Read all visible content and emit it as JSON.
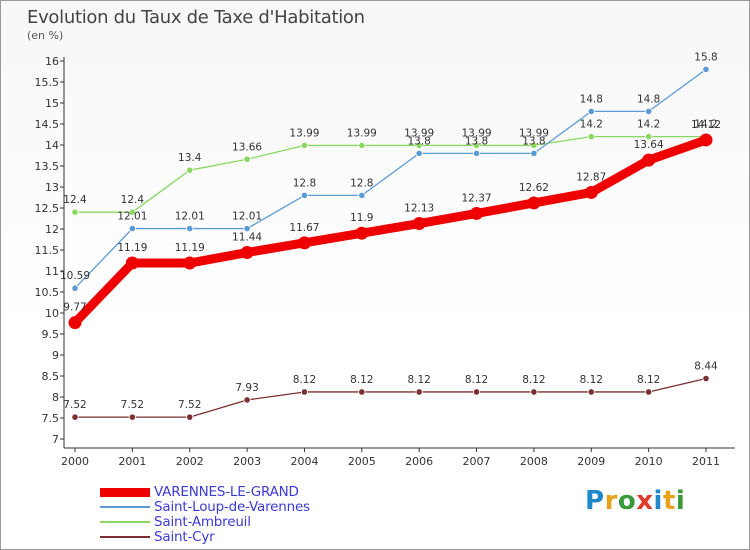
{
  "title": "Evolution du Taux de Taxe d'Habitation",
  "subtitle": "(en %)",
  "logo": {
    "text": "Proxiti",
    "colors": [
      "#1e88c8",
      "#e6a21a",
      "#3a9a3a",
      "#e03a2a",
      "#1e88c8",
      "#e6a21a",
      "#3a9a3a"
    ]
  },
  "chart_data": {
    "type": "line",
    "x": [
      "2000",
      "2001",
      "2002",
      "2003",
      "2004",
      "2005",
      "2006",
      "2007",
      "2008",
      "2009",
      "2010",
      "2011"
    ],
    "ylim": [
      7,
      16
    ],
    "yticks": [
      "7",
      "7.5",
      "8",
      "8.5",
      "9",
      "9.5",
      "10",
      "10.5",
      "11",
      "11.5",
      "12",
      "12.5",
      "13",
      "13.5",
      "14",
      "14.5",
      "15",
      "15.5",
      "16"
    ],
    "grid": false,
    "legend_position": "bottom-left",
    "series": [
      {
        "name": "VARENNES-LE-GRAND",
        "color": "#ee0000",
        "values": [
          9.77,
          11.19,
          11.19,
          11.44,
          11.67,
          11.9,
          12.13,
          12.37,
          12.62,
          12.87,
          13.64,
          14.12
        ],
        "labels": [
          "9.77",
          "11.19",
          "11.19",
          "11.44",
          "11.67",
          "11.9",
          "12.13",
          "12.37",
          "12.62",
          "12.87",
          "13.64",
          "14.12"
        ]
      },
      {
        "name": "Saint-Loup-de-Varennes",
        "color": "#5b9bd5",
        "values": [
          10.59,
          12.01,
          12.01,
          12.01,
          12.8,
          12.8,
          13.8,
          13.8,
          13.8,
          14.8,
          14.8,
          15.8
        ],
        "labels": [
          "10.59",
          "12.01",
          "12.01",
          "12.01",
          "12.8",
          "12.8",
          "13.8",
          "13.8",
          "13.8",
          "14.8",
          "14.8",
          "15.8"
        ]
      },
      {
        "name": "Saint-Ambreuil",
        "color": "#88d860",
        "values": [
          12.4,
          12.4,
          13.4,
          13.66,
          13.99,
          13.99,
          13.99,
          13.99,
          13.99,
          14.2,
          14.2,
          14.2
        ],
        "labels": [
          "12.4",
          "12.4",
          "13.4",
          "13.66",
          "13.99",
          "13.99",
          "13.99",
          "13.99",
          "13.99",
          "14.2",
          "14.2",
          "14.2"
        ]
      },
      {
        "name": "Saint-Cyr",
        "color": "#7a3030",
        "values": [
          7.52,
          7.52,
          7.52,
          7.93,
          8.12,
          8.12,
          8.12,
          8.12,
          8.12,
          8.12,
          8.12,
          8.44
        ],
        "labels": [
          "7.52",
          "7.52",
          "7.52",
          "7.93",
          "8.12",
          "8.12",
          "8.12",
          "8.12",
          "8.12",
          "8.12",
          "8.12",
          "8.44"
        ]
      }
    ]
  }
}
